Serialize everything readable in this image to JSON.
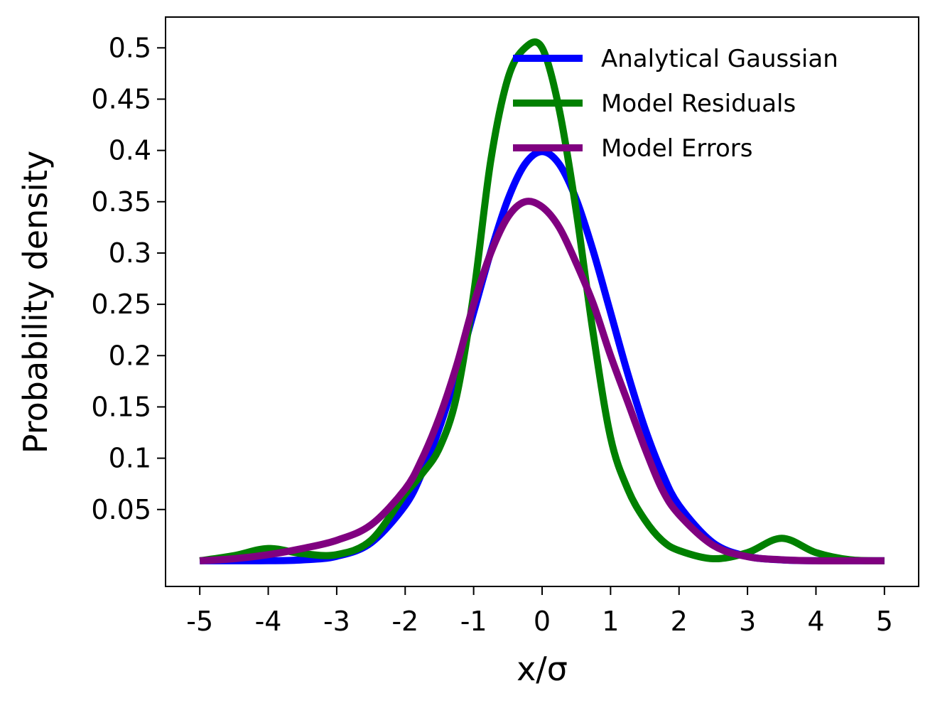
{
  "chart_data": {
    "type": "line",
    "xlabel": "x/σ",
    "ylabel": "Probability density",
    "xlim": [
      -5.5,
      5.5
    ],
    "ylim": [
      -0.025,
      0.53
    ],
    "xticks": [
      -5,
      -4,
      -3,
      -2,
      -1,
      0,
      1,
      2,
      3,
      4,
      5
    ],
    "xtick_labels": [
      "-5",
      "-4",
      "-3",
      "-2",
      "-1",
      "0",
      "1",
      "2",
      "3",
      "4",
      "5"
    ],
    "yticks": [
      0.05,
      0.1,
      0.15,
      0.2,
      0.25,
      0.3,
      0.35,
      0.4,
      0.45,
      0.5
    ],
    "ytick_labels": [
      "0.05",
      "0.1",
      "0.15",
      "0.2",
      "0.25",
      "0.3",
      "0.35",
      "0.4",
      "0.45",
      "0.5"
    ],
    "grid": false,
    "legend_position": "top-right",
    "x": [
      -5,
      -4.5,
      -4,
      -3.5,
      -3,
      -2.5,
      -2,
      -1.75,
      -1.5,
      -1.25,
      -1,
      -0.75,
      -0.5,
      -0.25,
      0,
      0.25,
      0.5,
      0.75,
      1,
      1.25,
      1.5,
      1.75,
      2,
      2.5,
      3,
      3.5,
      4,
      4.5,
      5
    ],
    "series": [
      {
        "name": "Analytical Gaussian",
        "color": "#0000ff",
        "values": [
          0.0,
          0.0,
          0.0001,
          0.0009,
          0.0044,
          0.0175,
          0.054,
          0.0863,
          0.1295,
          0.1826,
          0.242,
          0.3011,
          0.3521,
          0.3867,
          0.3989,
          0.3867,
          0.3521,
          0.3011,
          0.242,
          0.1826,
          0.1295,
          0.0863,
          0.054,
          0.0175,
          0.0044,
          0.0009,
          0.0001,
          0.0,
          0.0
        ]
      },
      {
        "name": "Model Residuals",
        "color": "#008000",
        "values": [
          0.0,
          0.005,
          0.012,
          0.007,
          0.006,
          0.02,
          0.065,
          0.085,
          0.11,
          0.16,
          0.26,
          0.39,
          0.47,
          0.5,
          0.5,
          0.44,
          0.34,
          0.22,
          0.12,
          0.07,
          0.04,
          0.02,
          0.01,
          0.002,
          0.008,
          0.022,
          0.008,
          0.001,
          0.0
        ]
      },
      {
        "name": "Model Errors",
        "color": "#800080",
        "values": [
          0.0,
          0.002,
          0.006,
          0.012,
          0.02,
          0.035,
          0.07,
          0.1,
          0.14,
          0.19,
          0.25,
          0.3,
          0.335,
          0.35,
          0.345,
          0.325,
          0.29,
          0.25,
          0.2,
          0.155,
          0.11,
          0.07,
          0.045,
          0.015,
          0.004,
          0.001,
          0.0,
          0.0,
          0.0
        ]
      }
    ]
  }
}
